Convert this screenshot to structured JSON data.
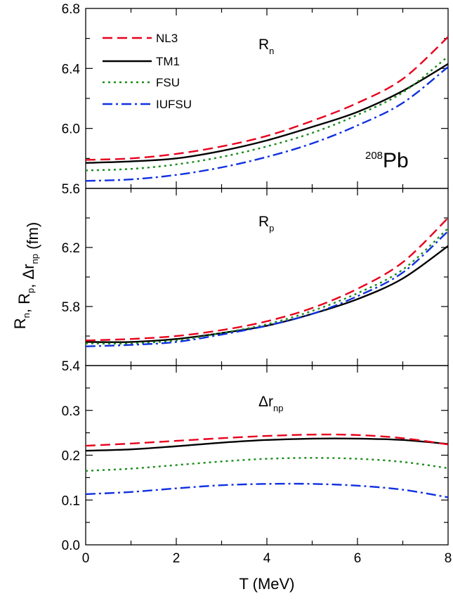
{
  "chart_data": {
    "type": "line",
    "x_label": "T (MeV)",
    "y_label_parts": [
      {
        "t": "R",
        "s": "n"
      },
      {
        "t": ", R",
        "s": "p"
      },
      {
        "t": ", Δr",
        "s": "np"
      },
      {
        "t": " (fm)",
        "s": ""
      }
    ],
    "x": [
      0,
      1,
      2,
      3,
      4,
      5,
      6,
      7,
      8
    ],
    "xlim": [
      0,
      8
    ],
    "x_ticks": [
      "0",
      "2",
      "4",
      "6",
      "8"
    ],
    "legend": {
      "position": "top-left",
      "entries": [
        "NL3",
        "TM1",
        "FSU",
        "IUFSU"
      ]
    },
    "nucleus_label": {
      "mass": "208",
      "symbol": "Pb"
    },
    "series_styles": [
      {
        "name": "NL3",
        "color": "#e8001c",
        "dash": "dashed"
      },
      {
        "name": "TM1",
        "color": "#000000",
        "dash": "solid"
      },
      {
        "name": "FSU",
        "color": "#1a8c1a",
        "dash": "dotted"
      },
      {
        "name": "IUFSU",
        "color": "#1030e0",
        "dash": "dashdot"
      }
    ],
    "panels": [
      {
        "label": {
          "main": "R",
          "sub": "n"
        },
        "ylim": [
          5.6,
          6.8
        ],
        "y_ticks": [
          "5.6",
          "6.0",
          "6.4",
          "6.8"
        ],
        "series": [
          {
            "name": "NL3",
            "values": [
              5.79,
              5.8,
              5.83,
              5.88,
              5.95,
              6.05,
              6.17,
              6.33,
              6.61
            ]
          },
          {
            "name": "TM1",
            "values": [
              5.77,
              5.78,
              5.8,
              5.85,
              5.92,
              6.01,
              6.11,
              6.25,
              6.43
            ]
          },
          {
            "name": "FSU",
            "values": [
              5.72,
              5.73,
              5.76,
              5.81,
              5.88,
              5.97,
              6.09,
              6.24,
              6.48
            ]
          },
          {
            "name": "IUFSU",
            "values": [
              5.65,
              5.66,
              5.69,
              5.74,
              5.81,
              5.9,
              6.02,
              6.17,
              6.41
            ]
          }
        ]
      },
      {
        "label": {
          "main": "R",
          "sub": "p"
        },
        "ylim": [
          5.4,
          6.6
        ],
        "y_ticks": [
          "5.4",
          "5.8",
          "6.2"
        ],
        "series": [
          {
            "name": "NL3",
            "values": [
              5.57,
              5.58,
              5.6,
              5.64,
              5.7,
              5.79,
              5.92,
              6.1,
              6.4
            ]
          },
          {
            "name": "TM1",
            "values": [
              5.56,
              5.56,
              5.58,
              5.62,
              5.67,
              5.75,
              5.85,
              5.99,
              6.21
            ]
          },
          {
            "name": "FSU",
            "values": [
              5.55,
              5.55,
              5.57,
              5.62,
              5.68,
              5.77,
              5.89,
              6.05,
              6.33
            ]
          },
          {
            "name": "IUFSU",
            "values": [
              5.53,
              5.54,
              5.56,
              5.61,
              5.67,
              5.75,
              5.87,
              6.03,
              6.31
            ]
          }
        ]
      },
      {
        "label": {
          "main": "Δr",
          "sub": "np"
        },
        "ylim": [
          0.0,
          0.4
        ],
        "y_ticks": [
          "0.0",
          "0.1",
          "0.2",
          "0.3"
        ],
        "series": [
          {
            "name": "NL3",
            "values": [
              0.221,
              0.226,
              0.232,
              0.238,
              0.243,
              0.246,
              0.245,
              0.238,
              0.224
            ]
          },
          {
            "name": "TM1",
            "values": [
              0.21,
              0.213,
              0.22,
              0.228,
              0.234,
              0.237,
              0.237,
              0.234,
              0.225
            ]
          },
          {
            "name": "FSU",
            "values": [
              0.165,
              0.17,
              0.178,
              0.186,
              0.192,
              0.194,
              0.192,
              0.185,
              0.171
            ]
          },
          {
            "name": "IUFSU",
            "values": [
              0.113,
              0.118,
              0.126,
              0.133,
              0.136,
              0.136,
              0.132,
              0.123,
              0.106
            ]
          }
        ]
      }
    ]
  }
}
